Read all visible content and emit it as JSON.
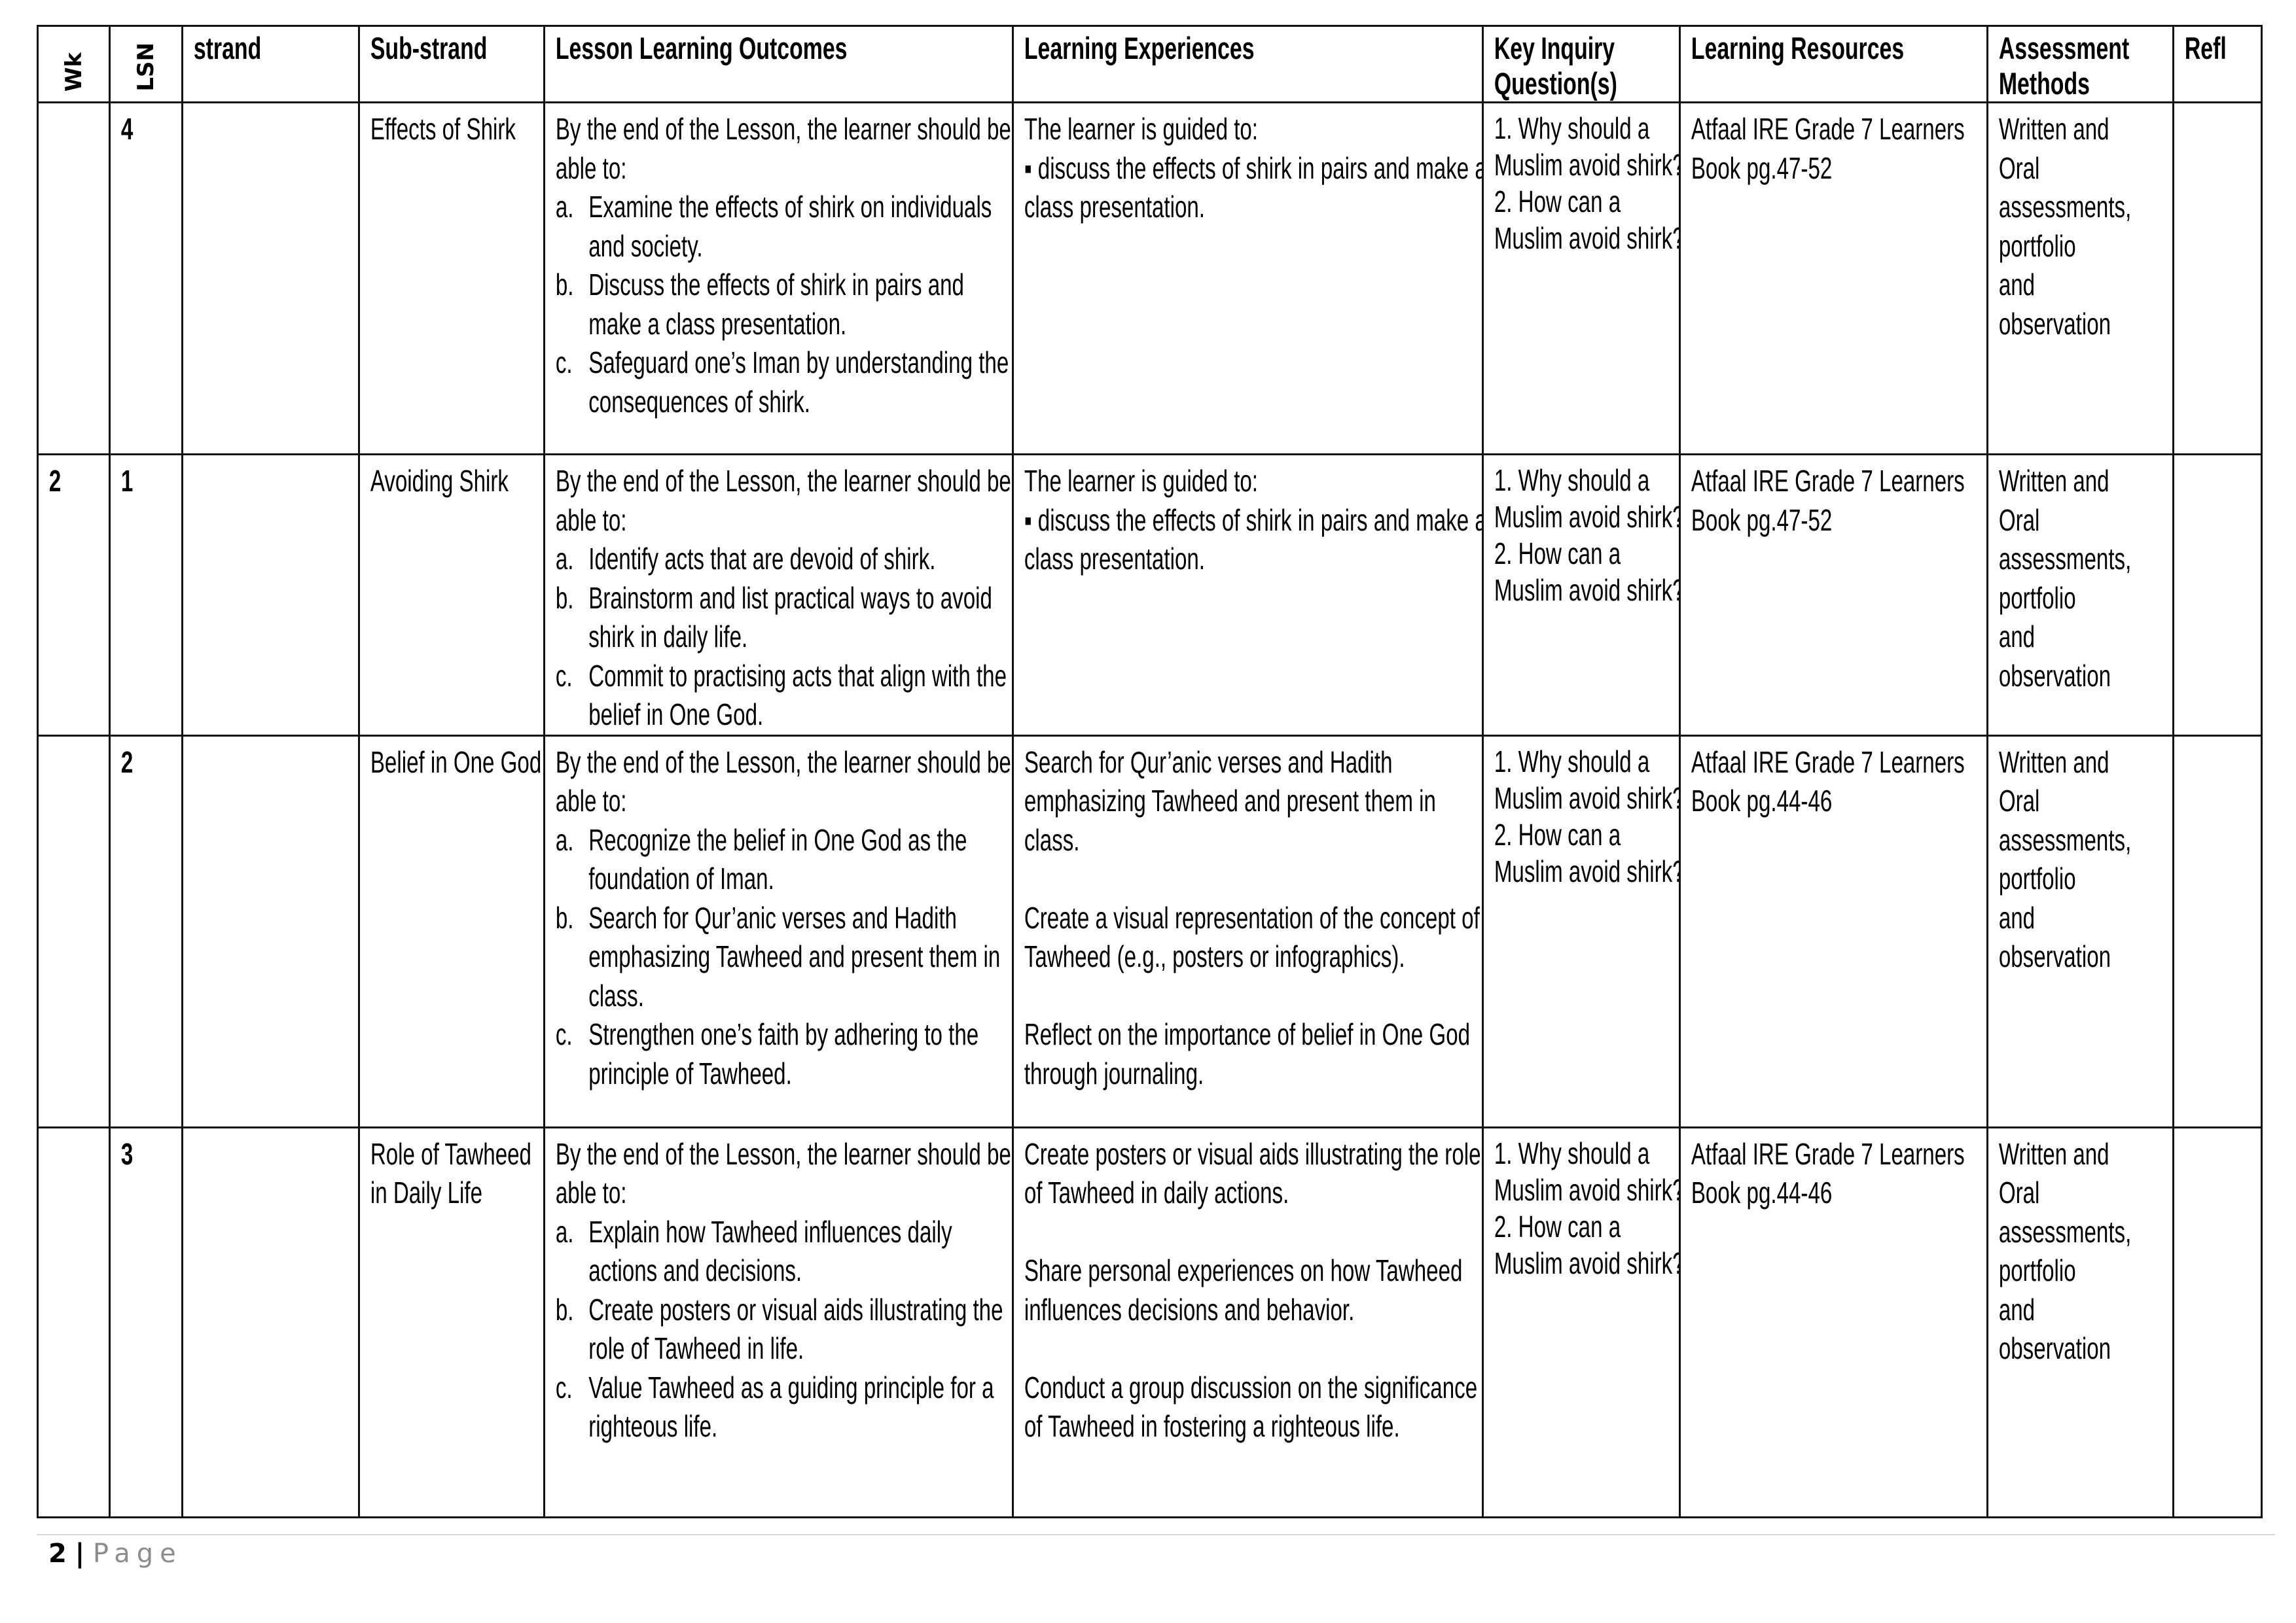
{
  "headers": {
    "wk": "Wk",
    "lsn": "LSN",
    "strand": "strand",
    "sub_strand": "Sub-strand",
    "outcomes": "Lesson Learning Outcomes",
    "experiences": "Learning Experiences",
    "inquiry": "Key Inquiry Question(s)",
    "resources": "Learning Resources",
    "assessment": "Assessment Methods",
    "refl": "Refl"
  },
  "rows": [
    {
      "wk": "",
      "lsn": "4",
      "strand": "",
      "sub_strand": "Effects of Shirk",
      "outcomes_intro": "By the end of the Lesson, the learner should be able to:",
      "outcomes": [
        {
          "letter": "a.",
          "text": "Examine the effects of shirk on individuals and society."
        },
        {
          "letter": "b.",
          "text": "Discuss the effects of shirk in pairs and make a class presentation."
        },
        {
          "letter": "c.",
          "text": "Safeguard one’s Iman by understanding the consequences of shirk."
        }
      ],
      "experiences": [
        "The learner is guided to:",
        "▪ discuss the effects of shirk in pairs and make a class presentation."
      ],
      "experiences_spaced": false,
      "inquiry": [
        "1. Why should a Muslim avoid shirk?",
        "2. How can a Muslim avoid shirk?"
      ],
      "resources": "Atfaal IRE Grade 7 Learners Book pg.47-52",
      "assessment": [
        "Written and",
        "Oral",
        "assessments,",
        "portfolio",
        "and",
        "observation"
      ],
      "refl": ""
    },
    {
      "wk": "2",
      "lsn": "1",
      "strand": "",
      "sub_strand": "Avoiding Shirk",
      "outcomes_intro": "By the end of the Lesson, the learner should be able to:",
      "outcomes": [
        {
          "letter": "a.",
          "text": "Identify acts that are devoid of shirk."
        },
        {
          "letter": "b.",
          "text": "Brainstorm and list practical ways to avoid shirk in daily life."
        },
        {
          "letter": "c.",
          "text": "Commit to practising acts that align with the belief in One God."
        }
      ],
      "experiences": [
        "The learner is guided to:",
        "▪ discuss the effects of shirk in pairs and make a class presentation."
      ],
      "experiences_spaced": false,
      "inquiry": [
        "1. Why should a Muslim avoid shirk?",
        "2. How can a Muslim avoid shirk?"
      ],
      "resources": "Atfaal IRE Grade 7 Learners Book pg.47-52",
      "assessment": [
        "Written and",
        "Oral",
        "assessments,",
        "portfolio",
        "and",
        "observation"
      ],
      "refl": ""
    },
    {
      "wk": "",
      "lsn": "2",
      "strand": "",
      "sub_strand": "Belief in One God",
      "outcomes_intro": "By the end of the Lesson, the learner should be able to:",
      "outcomes": [
        {
          "letter": "a.",
          "text": "Recognize the belief in One God as the foundation of Iman."
        },
        {
          "letter": "b.",
          "text": "Search for Qur’anic verses and Hadith emphasizing Tawheed and present them in class."
        },
        {
          "letter": "c.",
          "text": "Strengthen one’s faith by adhering to the principle of Tawheed."
        }
      ],
      "experiences": [
        "Search for Qur’anic verses and Hadith emphasizing Tawheed and present them in class.",
        "Create a visual representation of the concept of Tawheed (e.g., posters or infographics).",
        "Reflect on the importance of belief in One God through journaling."
      ],
      "experiences_spaced": true,
      "inquiry": [
        "1. Why should a Muslim avoid shirk?",
        "2. How can a Muslim avoid shirk?"
      ],
      "resources": "Atfaal IRE Grade 7 Learners Book pg.44-46",
      "assessment": [
        "Written and",
        "Oral",
        "assessments,",
        "portfolio",
        "and",
        "observation"
      ],
      "refl": ""
    },
    {
      "wk": "",
      "lsn": "3",
      "strand": "",
      "sub_strand": "Role of Tawheed in Daily Life",
      "outcomes_intro": "By the end of the Lesson, the learner should be able to:",
      "outcomes": [
        {
          "letter": "a.",
          "text": "Explain how Tawheed influences daily actions and decisions."
        },
        {
          "letter": "b.",
          "text": "Create posters or visual aids illustrating the role of Tawheed in life."
        },
        {
          "letter": "c.",
          "text": "Value Tawheed as a guiding principle for a righteous life."
        }
      ],
      "experiences": [
        "Create posters or visual aids illustrating the role of Tawheed in daily actions.",
        "Share personal experiences on how Tawheed influences decisions and behavior.",
        "Conduct a group discussion on the significance of Tawheed in fostering a righteous life."
      ],
      "experiences_spaced": true,
      "inquiry": [
        "1. Why should a Muslim avoid shirk?",
        "2. How can a Muslim avoid shirk?"
      ],
      "resources": "Atfaal IRE Grade 7 Learners Book pg.44-46",
      "assessment": [
        "Written and",
        "Oral",
        "assessments,",
        "portfolio",
        "and",
        "observation"
      ],
      "refl": ""
    }
  ],
  "footer": {
    "page_number": "2",
    "separator": "|",
    "page_label": "Page"
  }
}
